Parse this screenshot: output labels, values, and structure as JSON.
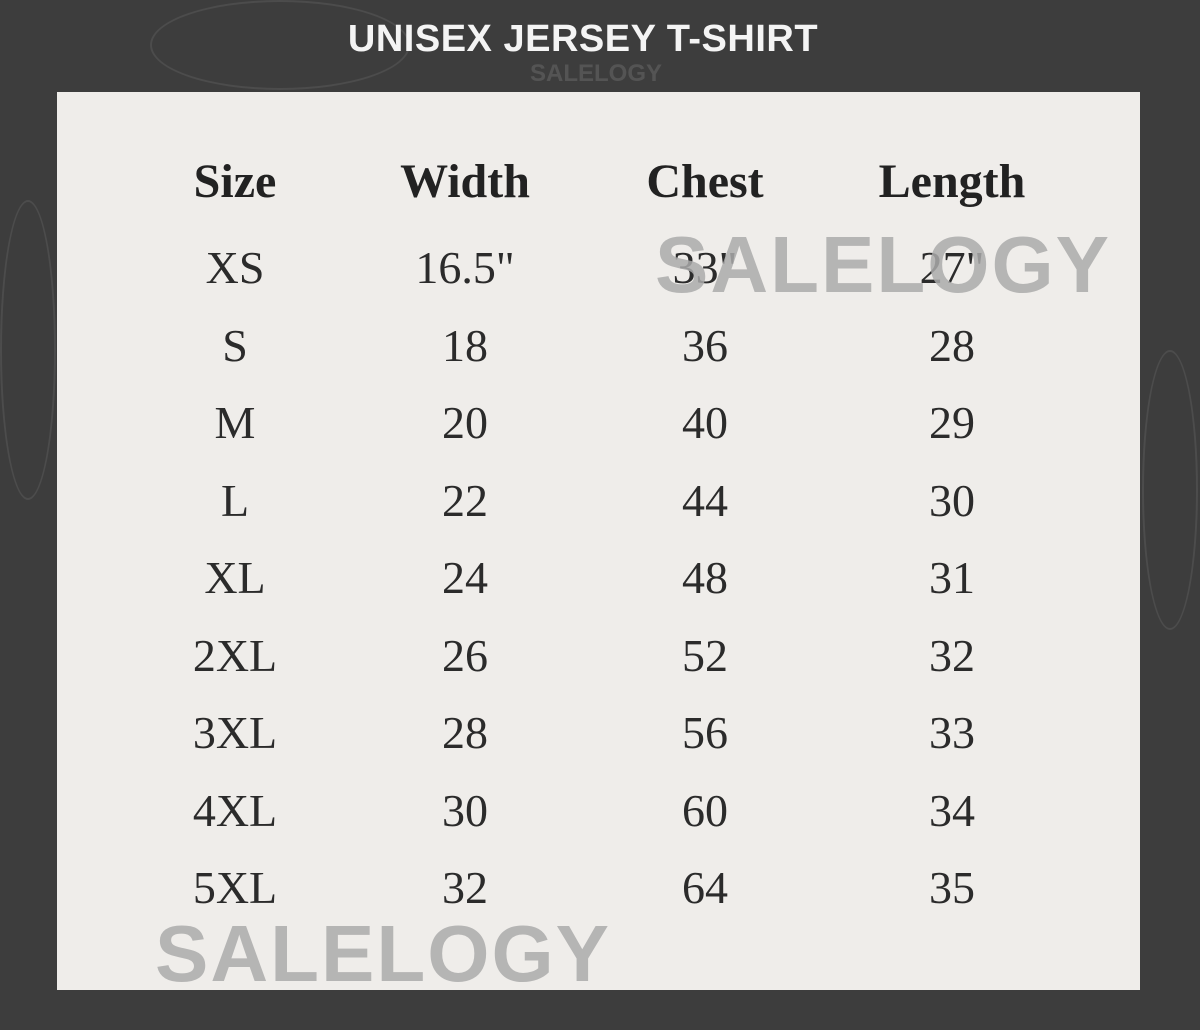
{
  "title": "UNISEX JERSEY T-SHIRT",
  "watermark": "SALELOGY",
  "table": {
    "headers": [
      "Size",
      "Width",
      "Chest",
      "Length"
    ],
    "rows": [
      [
        "XS",
        "16.5\"",
        "33\"",
        "27\""
      ],
      [
        "S",
        "18",
        "36",
        "28"
      ],
      [
        "M",
        "20",
        "40",
        "29"
      ],
      [
        "L",
        "22",
        "44",
        "30"
      ],
      [
        "XL",
        "24",
        "48",
        "31"
      ],
      [
        "2XL",
        "26",
        "52",
        "32"
      ],
      [
        "3XL",
        "28",
        "56",
        "33"
      ],
      [
        "4XL",
        "30",
        "60",
        "34"
      ],
      [
        "5XL",
        "32",
        "64",
        "35"
      ]
    ]
  },
  "colors": {
    "background": "#3d3d3d",
    "panel": "#efedea",
    "text": "#2b2b2b"
  }
}
